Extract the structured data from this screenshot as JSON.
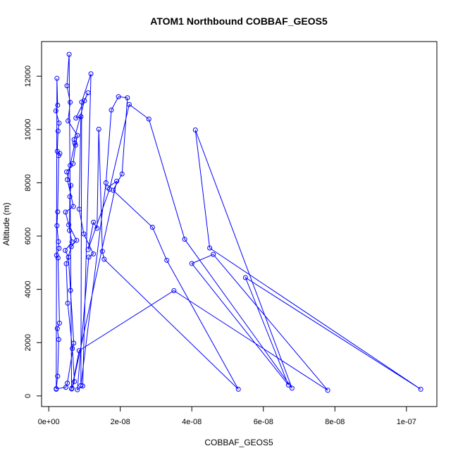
{
  "chart_data": {
    "type": "line",
    "title": "ATOM1 Northbound COBBAF_GEOS5",
    "xlabel": "COBBAF_GEOS5",
    "ylabel": "Altitude (m)",
    "xlim": [
      -2e-09,
      1.085e-07
    ],
    "ylim": [
      -400,
      13300
    ],
    "x_ticks": [
      0,
      2e-08,
      4e-08,
      6e-08,
      8e-08,
      1e-07
    ],
    "x_tick_labels": [
      "0e+00",
      "2e-08",
      "4e-08",
      "6e-08",
      "8e-08",
      "1e-07"
    ],
    "y_ticks": [
      0,
      2000,
      4000,
      6000,
      8000,
      10000,
      12000
    ],
    "y_tick_labels": [
      "0",
      "2000",
      "4000",
      "6000",
      "8000",
      "10000",
      "12000"
    ],
    "line_color": "#0000ff",
    "marker": "open-circle",
    "grid": false,
    "series": [
      {
        "x": [
          2.1e-09,
          2.5e-09,
          2.8e-09,
          2.4e-09,
          3e-09,
          2.6e-09,
          2.2e-09,
          2.9e-09,
          2.7e-09,
          2.3e-09,
          2.5e-09,
          2.8e-09,
          3.1e-09,
          2.4e-09,
          2.6e-09,
          2.9e-09,
          2e-09,
          2.5e-09,
          2.3e-09,
          2.1e-09,
          4.8e-09,
          5.2e-09,
          7e-09,
          6.1e-09,
          5.5e-09,
          4.6e-09,
          6.5e-09,
          5.8e-09,
          5.9e-09,
          6.2e-09,
          5e-09,
          6.8e-09,
          7.5e-09,
          8e-09,
          5.4e-09,
          6e-09,
          5.1e-09,
          5.7e-09,
          6.4e-09,
          7.2e-09,
          6.6e-09,
          5.3e-09,
          4.9e-09,
          6.3e-09,
          7.8e-09,
          5.6e-09,
          4.7e-09,
          6.9e-09,
          5.2e-09,
          6e-09,
          7.3e-09,
          7.1e-09,
          1e-08,
          1.1e-08,
          7.6e-09,
          9e-09,
          8.5e-09,
          9.8e-09,
          1.25e-08,
          1.12e-08,
          8e-09,
          9.5e-09,
          1.18e-08,
          9.2e-09,
          9e-09,
          1.6e-08,
          1.75e-08,
          1.95e-08,
          2.2e-08,
          2.05e-08,
          1.8e-08,
          2.9e-08,
          3.3e-08,
          5.3e-08,
          1.55e-08,
          1.5e-08,
          1.4e-08,
          1.35e-08,
          1.25e-08,
          1.1e-08,
          1.7e-08,
          2.25e-08,
          2.8e-08,
          3.8e-08,
          6.8e-08,
          4.1e-08,
          4.5e-08,
          1.04e-07,
          5.5e-08,
          6.7e-08,
          4e-08,
          4.6e-08,
          7.8e-08,
          3.5e-08,
          8.5e-09,
          6.5e-09,
          1.9e-08,
          1.65e-08
        ],
        "y": [
          250,
          740,
          2120,
          2530,
          2730,
          5180,
          5280,
          5540,
          5790,
          6390,
          6910,
          9020,
          9100,
          9180,
          9940,
          10240,
          10700,
          10910,
          11920,
          270,
          320,
          480,
          1980,
          3960,
          5210,
          5460,
          5780,
          6210,
          7480,
          7900,
          8410,
          8720,
          9410,
          9780,
          10320,
          11020,
          11640,
          12820,
          260,
          540,
          1780,
          3480,
          4960,
          5600,
          5840,
          6420,
          6900,
          7110,
          8120,
          8650,
          9490,
          9620,
          11080,
          11380,
          10430,
          10480,
          7010,
          6080,
          5330,
          5210,
          230,
          370,
          12090,
          11030,
          390,
          8000,
          10730,
          11230,
          11190,
          8330,
          7720,
          6330,
          5090,
          250,
          5130,
          5430,
          10010,
          6290,
          6520,
          5490,
          7760,
          10940,
          10390,
          5880,
          290,
          9980,
          5550,
          250,
          4440,
          410,
          4970,
          5310,
          210,
          3950,
          1700,
          290,
          8060,
          7820
        ]
      }
    ]
  }
}
